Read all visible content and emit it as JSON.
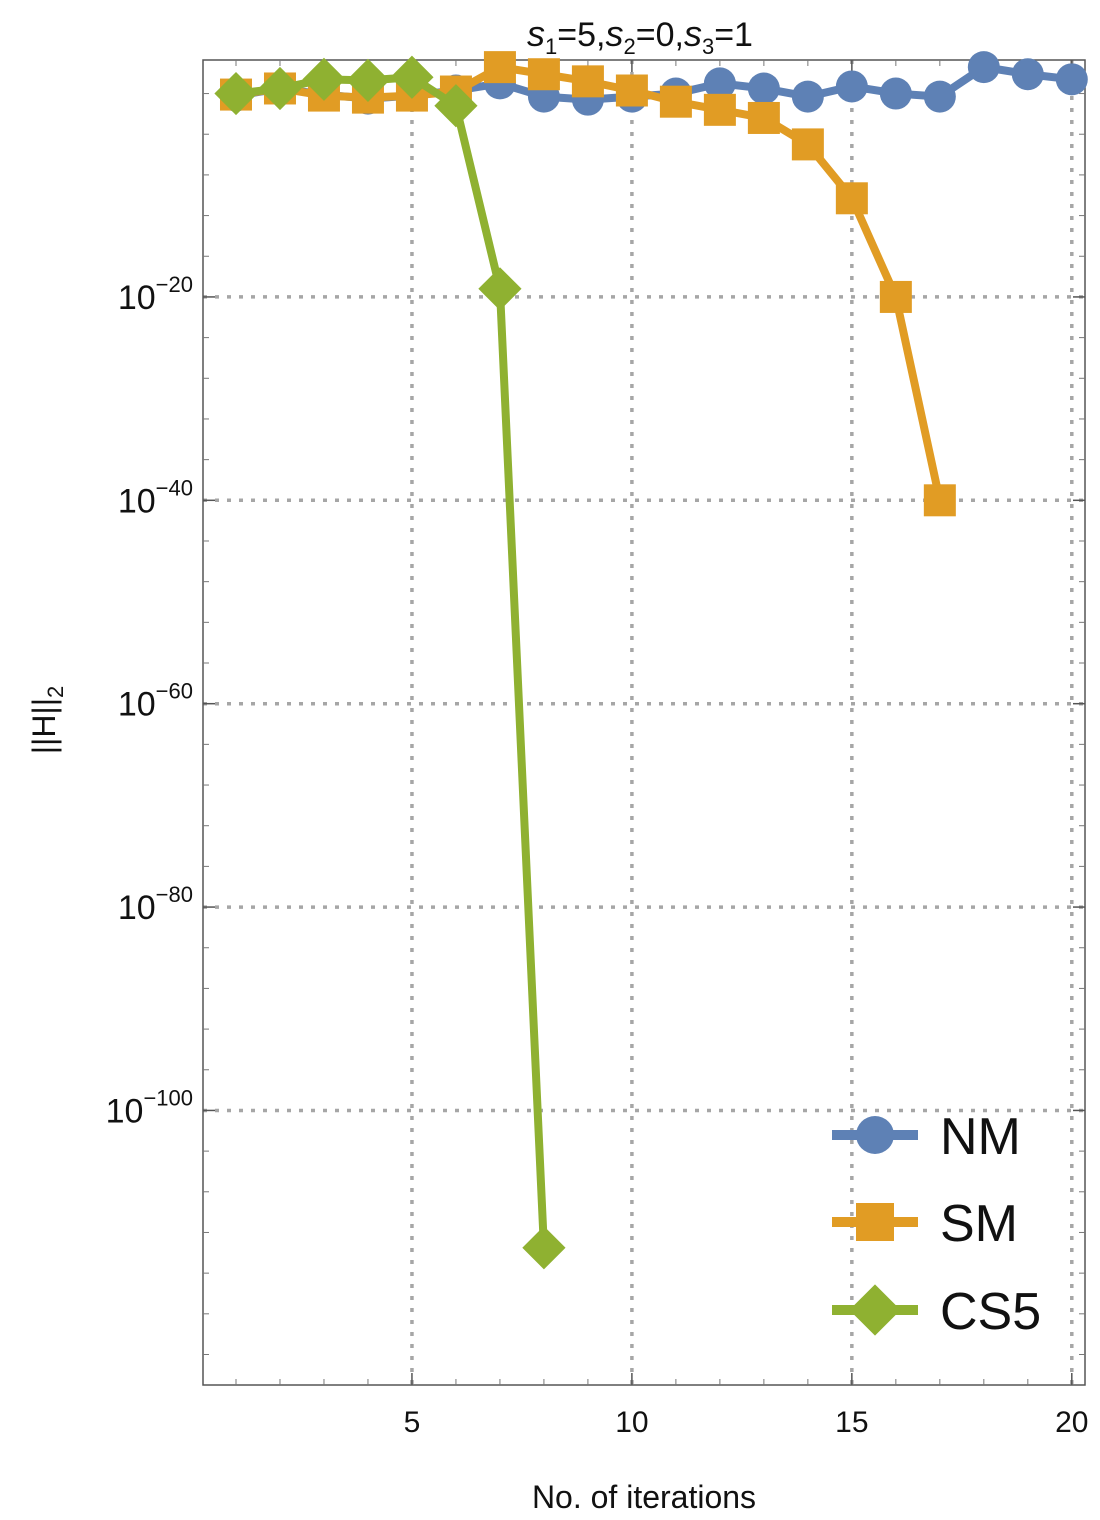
{
  "chart_data": {
    "type": "line",
    "title_parts": [
      {
        "sym": "s",
        "sub": "1",
        "val": "=5,"
      },
      {
        "sym": "s",
        "sub": "2",
        "val": "=0,"
      },
      {
        "sym": "s",
        "sub": "3",
        "val": "=1"
      }
    ],
    "xlabel": "No. of iterations",
    "ylabel": "||H||",
    "ylabel_sub": "2",
    "y_scale": "log10",
    "xlim": [
      0.25,
      20.3
    ],
    "ylim_log10": [
      -127,
      3.3
    ],
    "x_ticks": [
      5,
      10,
      15,
      20
    ],
    "x_tick_labels": [
      "5",
      "10",
      "15",
      "20"
    ],
    "y_ticks_log10": [
      -20,
      -40,
      -60,
      -80,
      -100
    ],
    "y_tick_base": "10",
    "y_tick_exponents": [
      "−20",
      "−40",
      "−60",
      "−80",
      "−100"
    ],
    "grid": true,
    "legend_position": "bottom-right",
    "series": [
      {
        "name": "NM",
        "color": "#5e81b5",
        "marker": "circle",
        "x": [
          1,
          2,
          3,
          4,
          5,
          6,
          7,
          8,
          9,
          10,
          11,
          12,
          13,
          14,
          15,
          16,
          17,
          18,
          19,
          20
        ],
        "log10_y": [
          -0.2,
          0.5,
          -0.1,
          -0.5,
          -0.2,
          0.3,
          1.0,
          -0.3,
          -0.6,
          -0.3,
          0.0,
          1.0,
          0.5,
          -0.3,
          0.7,
          0.0,
          -0.3,
          2.6,
          1.9,
          1.4
        ]
      },
      {
        "name": "SM",
        "color": "#e19c24",
        "marker": "square",
        "x": [
          1,
          2,
          3,
          4,
          5,
          6,
          7,
          8,
          9,
          10,
          11,
          12,
          13,
          14,
          15,
          16,
          17
        ],
        "log10_y": [
          -0.1,
          0.5,
          -0.2,
          -0.4,
          -0.2,
          0.2,
          2.6,
          1.9,
          1.2,
          0.3,
          -0.8,
          -1.6,
          -2.4,
          -5.0,
          -10.3,
          -20.0,
          -40.0
        ]
      },
      {
        "name": "CS5",
        "color": "#8fb131",
        "marker": "diamond",
        "x": [
          1,
          2,
          3,
          4,
          5,
          6,
          7,
          8
        ],
        "log10_y": [
          0.0,
          0.5,
          1.4,
          1.3,
          1.6,
          -1.2,
          -19.2,
          -113.5
        ]
      }
    ]
  }
}
